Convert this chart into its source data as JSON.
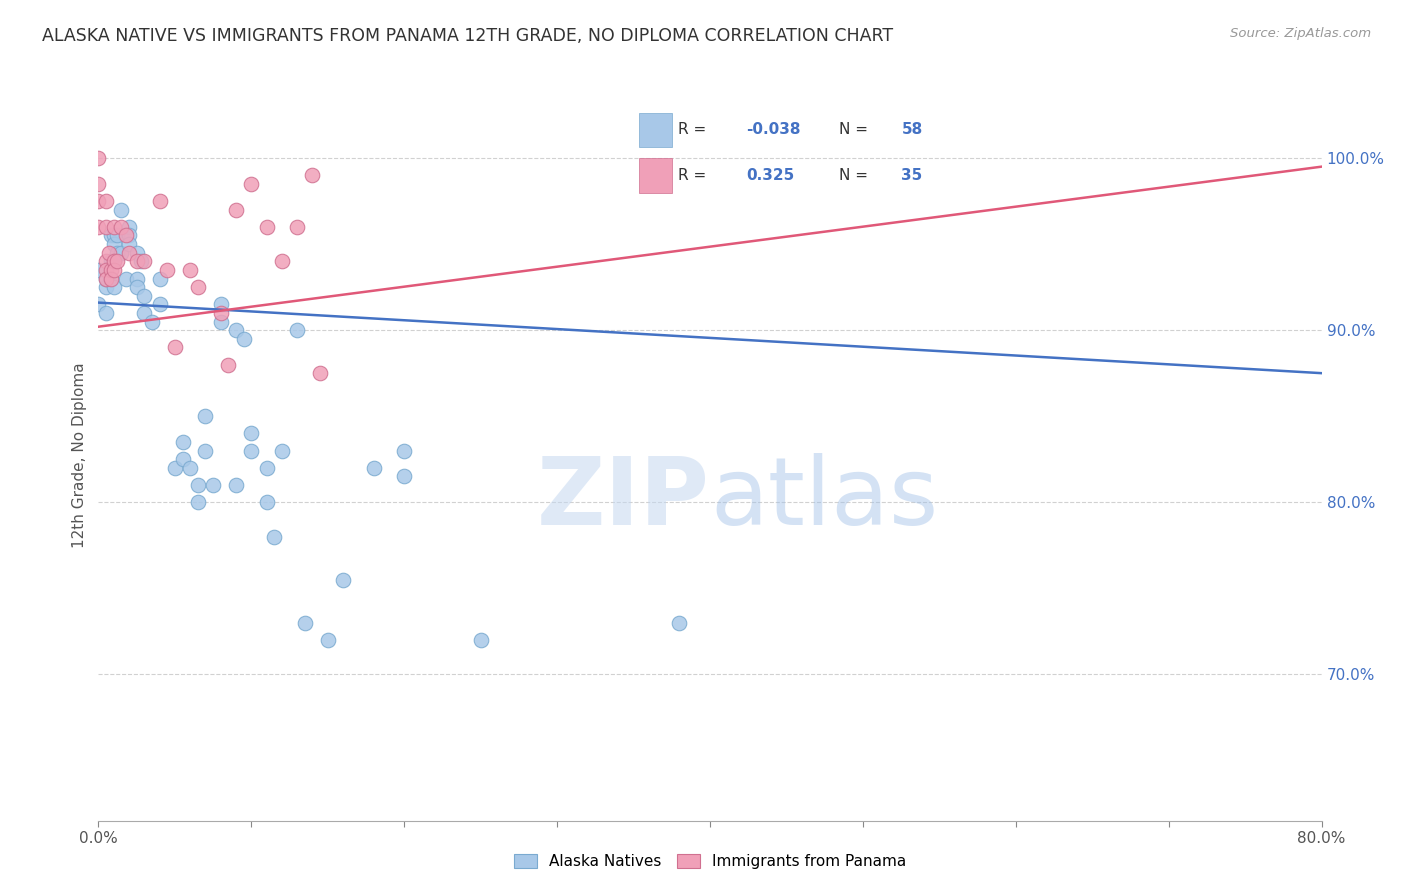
{
  "title": "ALASKA NATIVE VS IMMIGRANTS FROM PANAMA 12TH GRADE, NO DIPLOMA CORRELATION CHART",
  "source": "Source: ZipAtlas.com",
  "ylabel": "12th Grade, No Diploma",
  "x_min": 0.0,
  "x_max": 0.8,
  "y_min": 0.615,
  "y_max": 1.04,
  "x_ticks": [
    0.0,
    0.1,
    0.2,
    0.3,
    0.4,
    0.5,
    0.6,
    0.7,
    0.8
  ],
  "x_tick_labels": [
    "0.0%",
    "",
    "",
    "",
    "",
    "",
    "",
    "",
    "80.0%"
  ],
  "y_ticks": [
    0.7,
    0.8,
    0.9,
    1.0
  ],
  "y_tick_labels": [
    "70.0%",
    "80.0%",
    "90.0%",
    "100.0%"
  ],
  "alaska_R": -0.038,
  "alaska_N": 58,
  "panama_R": 0.325,
  "panama_N": 35,
  "alaska_color": "#a8c8e8",
  "panama_color": "#f0a0b8",
  "alaska_line_color": "#4472C4",
  "panama_line_color": "#E05878",
  "background_color": "#FFFFFF",
  "watermark_zip": "ZIP",
  "watermark_atlas": "atlas",
  "alaska_line_x": [
    0.0,
    0.8
  ],
  "alaska_line_y": [
    0.916,
    0.875
  ],
  "panama_line_x": [
    0.0,
    0.8
  ],
  "panama_line_y": [
    0.902,
    0.995
  ],
  "alaska_points": [
    [
      0.0,
      0.915
    ],
    [
      0.0,
      0.935
    ],
    [
      0.005,
      0.925
    ],
    [
      0.005,
      0.93
    ],
    [
      0.005,
      0.91
    ],
    [
      0.008,
      0.955
    ],
    [
      0.008,
      0.94
    ],
    [
      0.008,
      0.93
    ],
    [
      0.01,
      0.955
    ],
    [
      0.01,
      0.94
    ],
    [
      0.01,
      0.925
    ],
    [
      0.01,
      0.95
    ],
    [
      0.012,
      0.945
    ],
    [
      0.012,
      0.955
    ],
    [
      0.015,
      0.97
    ],
    [
      0.015,
      0.945
    ],
    [
      0.018,
      0.93
    ],
    [
      0.02,
      0.96
    ],
    [
      0.02,
      0.955
    ],
    [
      0.02,
      0.95
    ],
    [
      0.025,
      0.945
    ],
    [
      0.025,
      0.93
    ],
    [
      0.025,
      0.925
    ],
    [
      0.028,
      0.94
    ],
    [
      0.03,
      0.92
    ],
    [
      0.03,
      0.91
    ],
    [
      0.035,
      0.905
    ],
    [
      0.04,
      0.93
    ],
    [
      0.04,
      0.915
    ],
    [
      0.05,
      0.82
    ],
    [
      0.055,
      0.835
    ],
    [
      0.055,
      0.825
    ],
    [
      0.06,
      0.82
    ],
    [
      0.065,
      0.81
    ],
    [
      0.065,
      0.8
    ],
    [
      0.07,
      0.83
    ],
    [
      0.07,
      0.85
    ],
    [
      0.075,
      0.81
    ],
    [
      0.08,
      0.905
    ],
    [
      0.08,
      0.915
    ],
    [
      0.09,
      0.9
    ],
    [
      0.09,
      0.81
    ],
    [
      0.095,
      0.895
    ],
    [
      0.1,
      0.84
    ],
    [
      0.1,
      0.83
    ],
    [
      0.11,
      0.82
    ],
    [
      0.11,
      0.8
    ],
    [
      0.115,
      0.78
    ],
    [
      0.12,
      0.83
    ],
    [
      0.13,
      0.9
    ],
    [
      0.135,
      0.73
    ],
    [
      0.15,
      0.72
    ],
    [
      0.16,
      0.755
    ],
    [
      0.18,
      0.82
    ],
    [
      0.2,
      0.83
    ],
    [
      0.2,
      0.815
    ],
    [
      0.25,
      0.72
    ],
    [
      0.38,
      0.73
    ]
  ],
  "panama_points": [
    [
      0.0,
      1.0
    ],
    [
      0.0,
      0.985
    ],
    [
      0.0,
      0.975
    ],
    [
      0.0,
      0.96
    ],
    [
      0.005,
      0.975
    ],
    [
      0.005,
      0.96
    ],
    [
      0.005,
      0.94
    ],
    [
      0.005,
      0.935
    ],
    [
      0.005,
      0.93
    ],
    [
      0.007,
      0.945
    ],
    [
      0.008,
      0.935
    ],
    [
      0.008,
      0.93
    ],
    [
      0.01,
      0.96
    ],
    [
      0.01,
      0.94
    ],
    [
      0.01,
      0.935
    ],
    [
      0.012,
      0.94
    ],
    [
      0.015,
      0.96
    ],
    [
      0.018,
      0.955
    ],
    [
      0.02,
      0.945
    ],
    [
      0.025,
      0.94
    ],
    [
      0.03,
      0.94
    ],
    [
      0.04,
      0.975
    ],
    [
      0.045,
      0.935
    ],
    [
      0.05,
      0.89
    ],
    [
      0.06,
      0.935
    ],
    [
      0.065,
      0.925
    ],
    [
      0.08,
      0.91
    ],
    [
      0.085,
      0.88
    ],
    [
      0.09,
      0.97
    ],
    [
      0.1,
      0.985
    ],
    [
      0.11,
      0.96
    ],
    [
      0.12,
      0.94
    ],
    [
      0.13,
      0.96
    ],
    [
      0.14,
      0.99
    ],
    [
      0.145,
      0.875
    ]
  ]
}
